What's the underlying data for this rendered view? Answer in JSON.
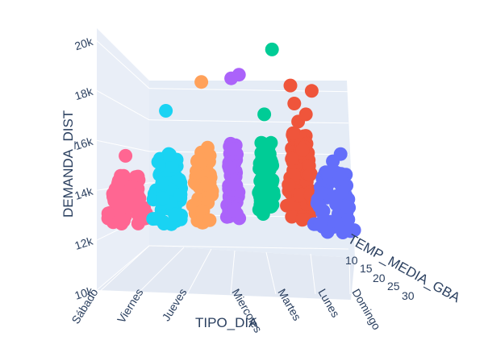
{
  "chart_data": {
    "type": "scatter3d",
    "x_axis": {
      "label": "TIPO_DIA",
      "categories": [
        "Sábado",
        "Viernes",
        "Jueves",
        "Miercoles",
        "Martes",
        "Lunes",
        "Domingo"
      ]
    },
    "y_axis": {
      "label": "TEMP_MEDIA_GBA",
      "ticks": [
        "10",
        "15",
        "20",
        "25",
        "30"
      ]
    },
    "z_axis": {
      "label": "DEMANDA_DIST",
      "range": [
        10000,
        20500
      ],
      "ticks": [
        {
          "value": 10000,
          "label": "10k"
        },
        {
          "value": 12000,
          "label": "12k"
        },
        {
          "value": 14000,
          "label": "14k"
        },
        {
          "value": 16000,
          "label": "16k"
        },
        {
          "value": 18000,
          "label": "18k"
        },
        {
          "value": 20000,
          "label": "20k"
        }
      ]
    },
    "series": [
      {
        "category": "Sábado",
        "color": "#ff6692",
        "demand_min": 11800,
        "demand_max": 14600,
        "outliers": [
          15600
        ]
      },
      {
        "category": "Viernes",
        "color": "#19d3f3",
        "demand_min": 11600,
        "demand_max": 15800,
        "outliers": [
          18100
        ]
      },
      {
        "category": "Jueves",
        "color": "#ffa15a",
        "demand_min": 11900,
        "demand_max": 16200,
        "outliers": [
          19700
        ]
      },
      {
        "category": "Miercoles",
        "color": "#ab63fa",
        "demand_min": 12100,
        "demand_max": 16300,
        "outliers": [
          19900,
          20100
        ]
      },
      {
        "category": "Martes",
        "color": "#00cc96",
        "demand_min": 12200,
        "demand_max": 16400,
        "outliers": [
          17900,
          21500
        ]
      },
      {
        "category": "Lunes",
        "color": "#ef553b",
        "demand_min": 12000,
        "demand_max": 16900,
        "outliers": [
          17500,
          17900,
          18500,
          19200,
          19500
        ]
      },
      {
        "category": "Domingo",
        "color": "#636efa",
        "demand_min": 11300,
        "demand_max": 14800,
        "outliers": [
          15300,
          15700
        ]
      }
    ]
  }
}
